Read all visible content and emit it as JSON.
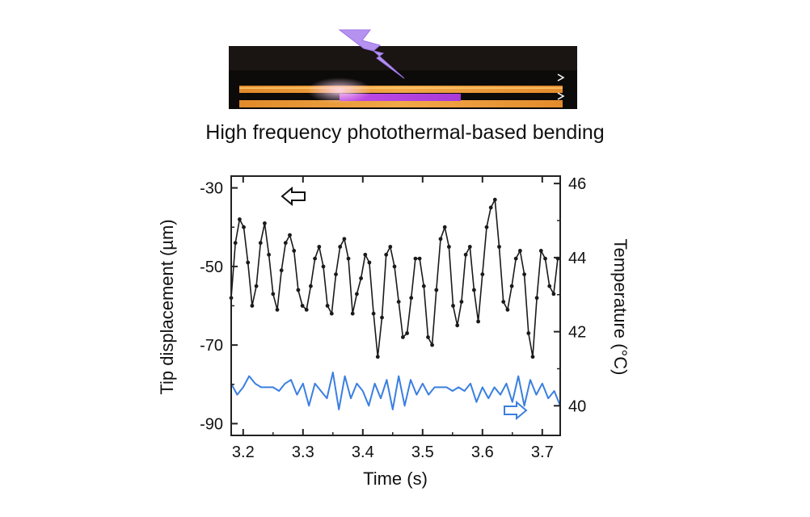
{
  "photo": {
    "caption": "High frequency photothermal-based bending"
  },
  "chart_data": {
    "type": "line",
    "xlabel": "Time (s)",
    "ylabel_left": "Tip displacement (µm)",
    "ylabel_right": "Temperature (°C)",
    "xlim": [
      3.18,
      3.73
    ],
    "ylim_left": [
      -93,
      -27
    ],
    "ylim_right": [
      39.2,
      46.2
    ],
    "x_ticks": [
      "3.2",
      "3.3",
      "3.4",
      "3.5",
      "3.6",
      "3.7"
    ],
    "x_tick_values": [
      3.2,
      3.3,
      3.4,
      3.5,
      3.6,
      3.7
    ],
    "y_ticks_left": [
      "-30",
      "-50",
      "-70",
      "-90"
    ],
    "y_tick_values_left": [
      -30,
      -50,
      -70,
      -90
    ],
    "y_ticks_right": [
      "46",
      "44",
      "42",
      "40"
    ],
    "y_tick_values_right": [
      46,
      44,
      42,
      40
    ],
    "series": [
      {
        "axis": "left",
        "color": "#1a1a1a",
        "marker": "dot",
        "x": [
          3.18,
          3.187,
          3.194,
          3.201,
          3.208,
          3.215,
          3.222,
          3.229,
          3.236,
          3.243,
          3.25,
          3.257,
          3.264,
          3.271,
          3.278,
          3.285,
          3.292,
          3.299,
          3.306,
          3.313,
          3.32,
          3.327,
          3.334,
          3.341,
          3.348,
          3.355,
          3.362,
          3.369,
          3.376,
          3.383,
          3.39,
          3.397,
          3.404,
          3.411,
          3.418,
          3.425,
          3.432,
          3.439,
          3.446,
          3.453,
          3.46,
          3.467,
          3.474,
          3.481,
          3.488,
          3.495,
          3.502,
          3.509,
          3.516,
          3.523,
          3.53,
          3.537,
          3.544,
          3.551,
          3.558,
          3.565,
          3.572,
          3.579,
          3.586,
          3.593,
          3.6,
          3.607,
          3.614,
          3.621,
          3.628,
          3.635,
          3.642,
          3.649,
          3.656,
          3.663,
          3.67,
          3.677,
          3.684,
          3.691,
          3.698,
          3.705,
          3.712,
          3.719,
          3.726
        ],
        "y": [
          -58,
          -44,
          -38,
          -40,
          -49,
          -60,
          -55,
          -44,
          -39,
          -47,
          -57,
          -61,
          -51,
          -44,
          -42,
          -46,
          -56,
          -60,
          -61,
          -55,
          -48,
          -45,
          -50,
          -60,
          -62,
          -52,
          -45,
          -43,
          -48,
          -62,
          -57,
          -53,
          -47,
          -49,
          -62,
          -73,
          -63,
          -47,
          -45,
          -50,
          -59,
          -68,
          -67,
          -58,
          -48,
          -48,
          -55,
          -68,
          -70,
          -56,
          -43,
          -40,
          -45,
          -60,
          -65,
          -59,
          -47,
          -45,
          -56,
          -64,
          -52,
          -40,
          -35,
          -33,
          -45,
          -59,
          -61,
          -55,
          -48,
          -46,
          -52,
          -67,
          -73,
          -58,
          -46,
          -48,
          -55,
          -57,
          -48
        ],
        "name": ""
      },
      {
        "axis": "right",
        "color": "#3a7fe0",
        "marker": "none",
        "x": [
          3.18,
          3.19,
          3.2,
          3.21,
          3.22,
          3.23,
          3.24,
          3.25,
          3.26,
          3.27,
          3.28,
          3.29,
          3.3,
          3.31,
          3.32,
          3.33,
          3.34,
          3.35,
          3.36,
          3.37,
          3.38,
          3.39,
          3.4,
          3.41,
          3.42,
          3.43,
          3.44,
          3.45,
          3.46,
          3.47,
          3.48,
          3.49,
          3.5,
          3.51,
          3.52,
          3.53,
          3.54,
          3.55,
          3.56,
          3.57,
          3.58,
          3.59,
          3.6,
          3.61,
          3.62,
          3.63,
          3.64,
          3.65,
          3.66,
          3.67,
          3.68,
          3.69,
          3.7,
          3.71,
          3.72,
          3.73
        ],
        "y": [
          40.6,
          40.3,
          40.5,
          40.8,
          40.6,
          40.5,
          40.5,
          40.5,
          40.4,
          40.6,
          40.7,
          40.3,
          40.6,
          40.0,
          40.6,
          40.4,
          40.2,
          40.9,
          39.9,
          40.8,
          40.2,
          40.6,
          40.4,
          40.0,
          40.6,
          40.2,
          40.7,
          39.9,
          40.8,
          40.0,
          40.7,
          40.3,
          40.6,
          40.3,
          40.5,
          40.5,
          40.5,
          40.4,
          40.5,
          40.4,
          40.6,
          40.1,
          40.5,
          40.2,
          40.5,
          40.3,
          40.6,
          40.1,
          40.8,
          40.0,
          40.7,
          40.3,
          40.6,
          40.2,
          40.4,
          40.0
        ],
        "name": ""
      }
    ]
  }
}
